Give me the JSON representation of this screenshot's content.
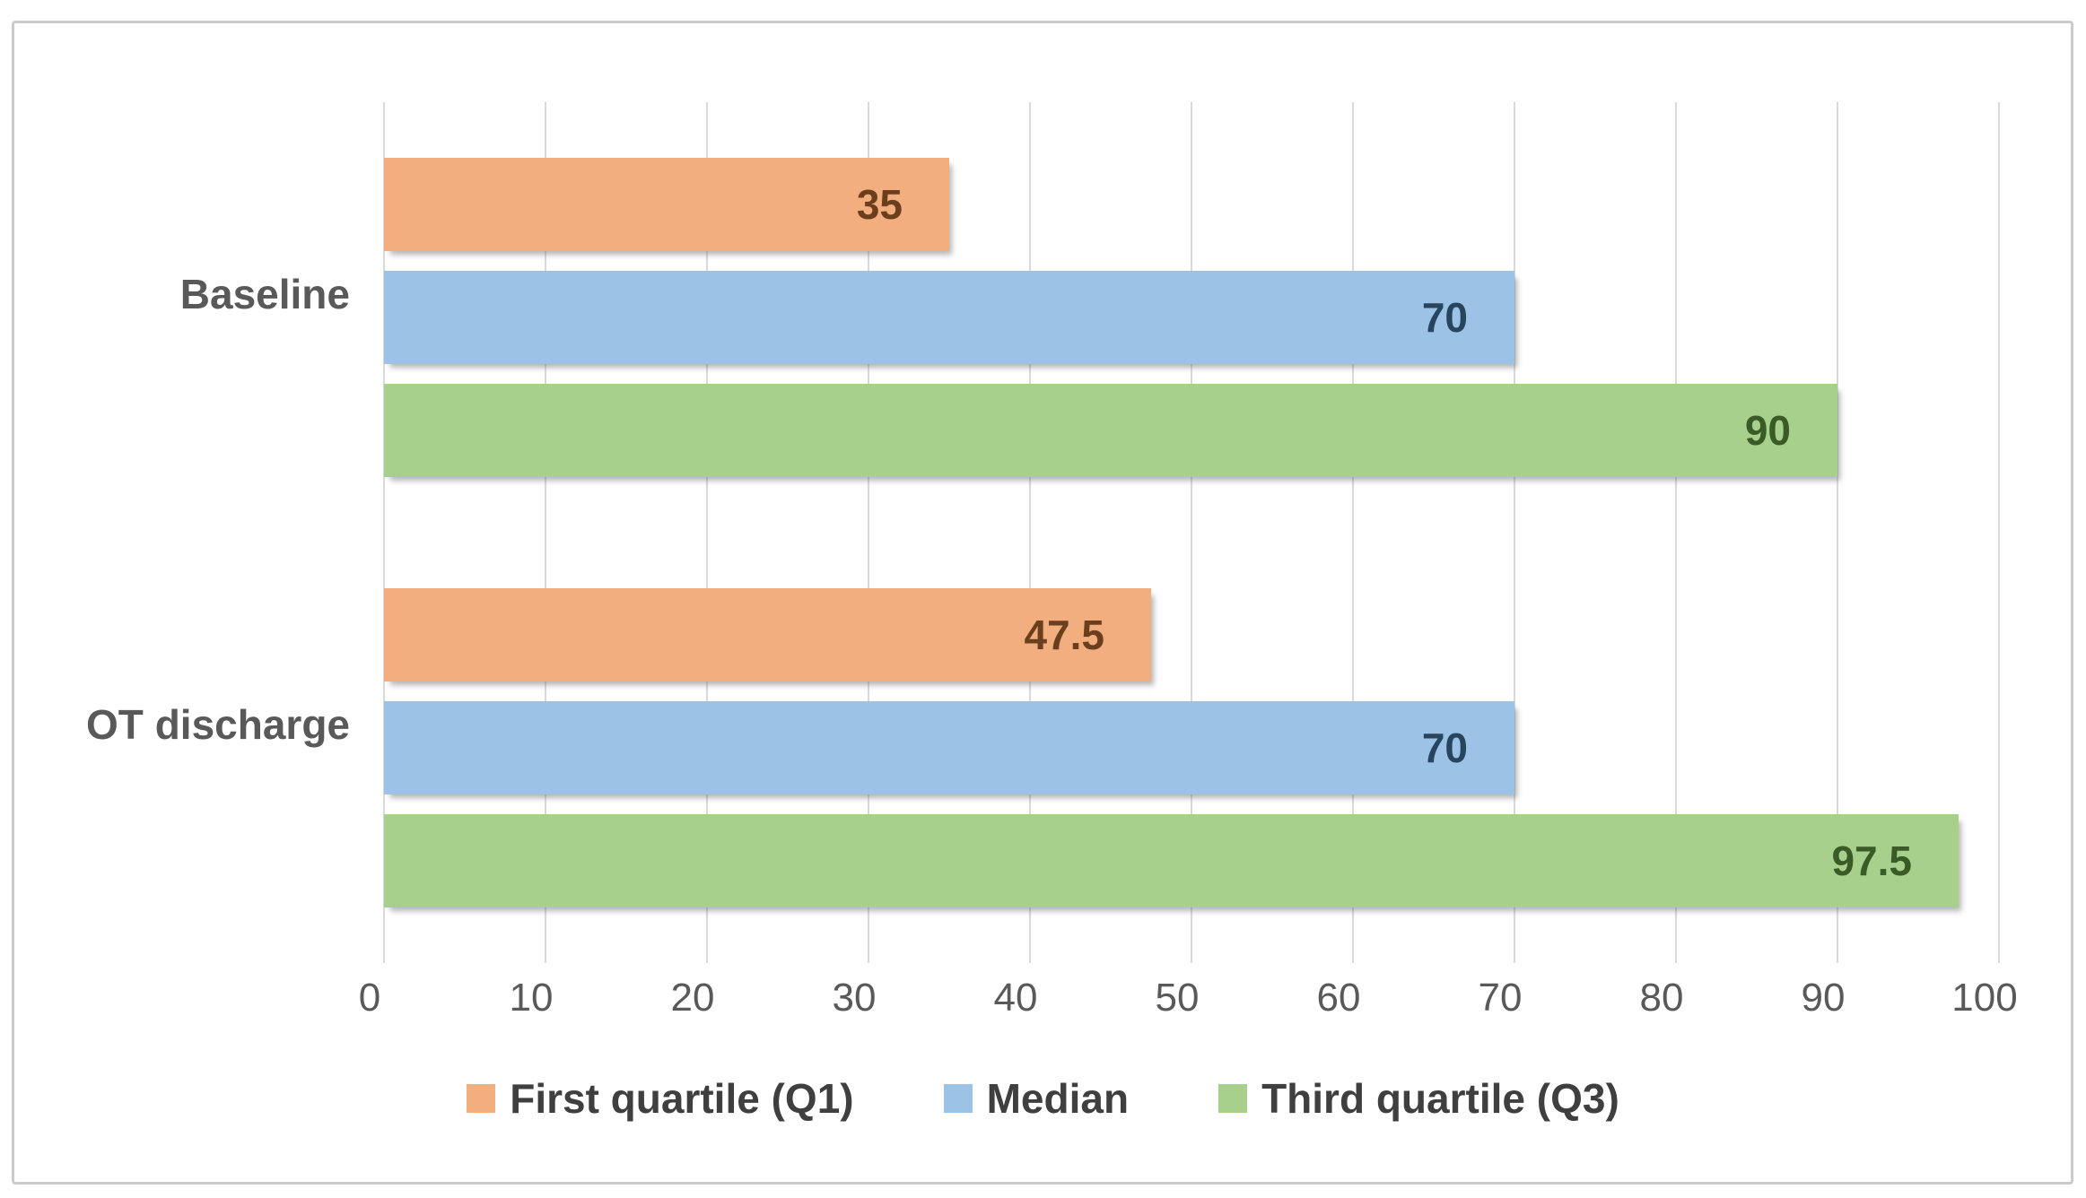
{
  "chart_data": {
    "type": "bar",
    "orientation": "horizontal",
    "title": "",
    "xlabel": "",
    "ylabel": "",
    "categories": [
      "Baseline",
      "OT discharge"
    ],
    "series": [
      {
        "name": "First quartile (Q1)",
        "values": [
          35,
          47.5
        ],
        "value_labels": [
          "35",
          "47.5"
        ],
        "color": "#F2AE7E",
        "label_color": "#6B3F1D"
      },
      {
        "name": "Median",
        "values": [
          70,
          70
        ],
        "value_labels": [
          "70",
          "70"
        ],
        "color": "#9CC3E5",
        "label_color": "#27455F"
      },
      {
        "name": "Third quartile (Q3)",
        "values": [
          90,
          97.5
        ],
        "value_labels": [
          "90",
          "97.5"
        ],
        "color": "#A8D08D",
        "label_color": "#3A5A26"
      }
    ],
    "xlim": [
      0,
      100
    ],
    "x_ticks": [
      0,
      10,
      20,
      30,
      40,
      50,
      60,
      70,
      80,
      90,
      100
    ],
    "grid": true,
    "legend_position": "bottom",
    "value_label_position": "inside-end",
    "colors": {
      "gridline": "#D9D9D9",
      "axis_text": "#595959",
      "category_text": "#595959",
      "legend_text": "#3F3F3F",
      "figure_border": "#CBCBCB",
      "background": "#FFFFFF"
    }
  }
}
